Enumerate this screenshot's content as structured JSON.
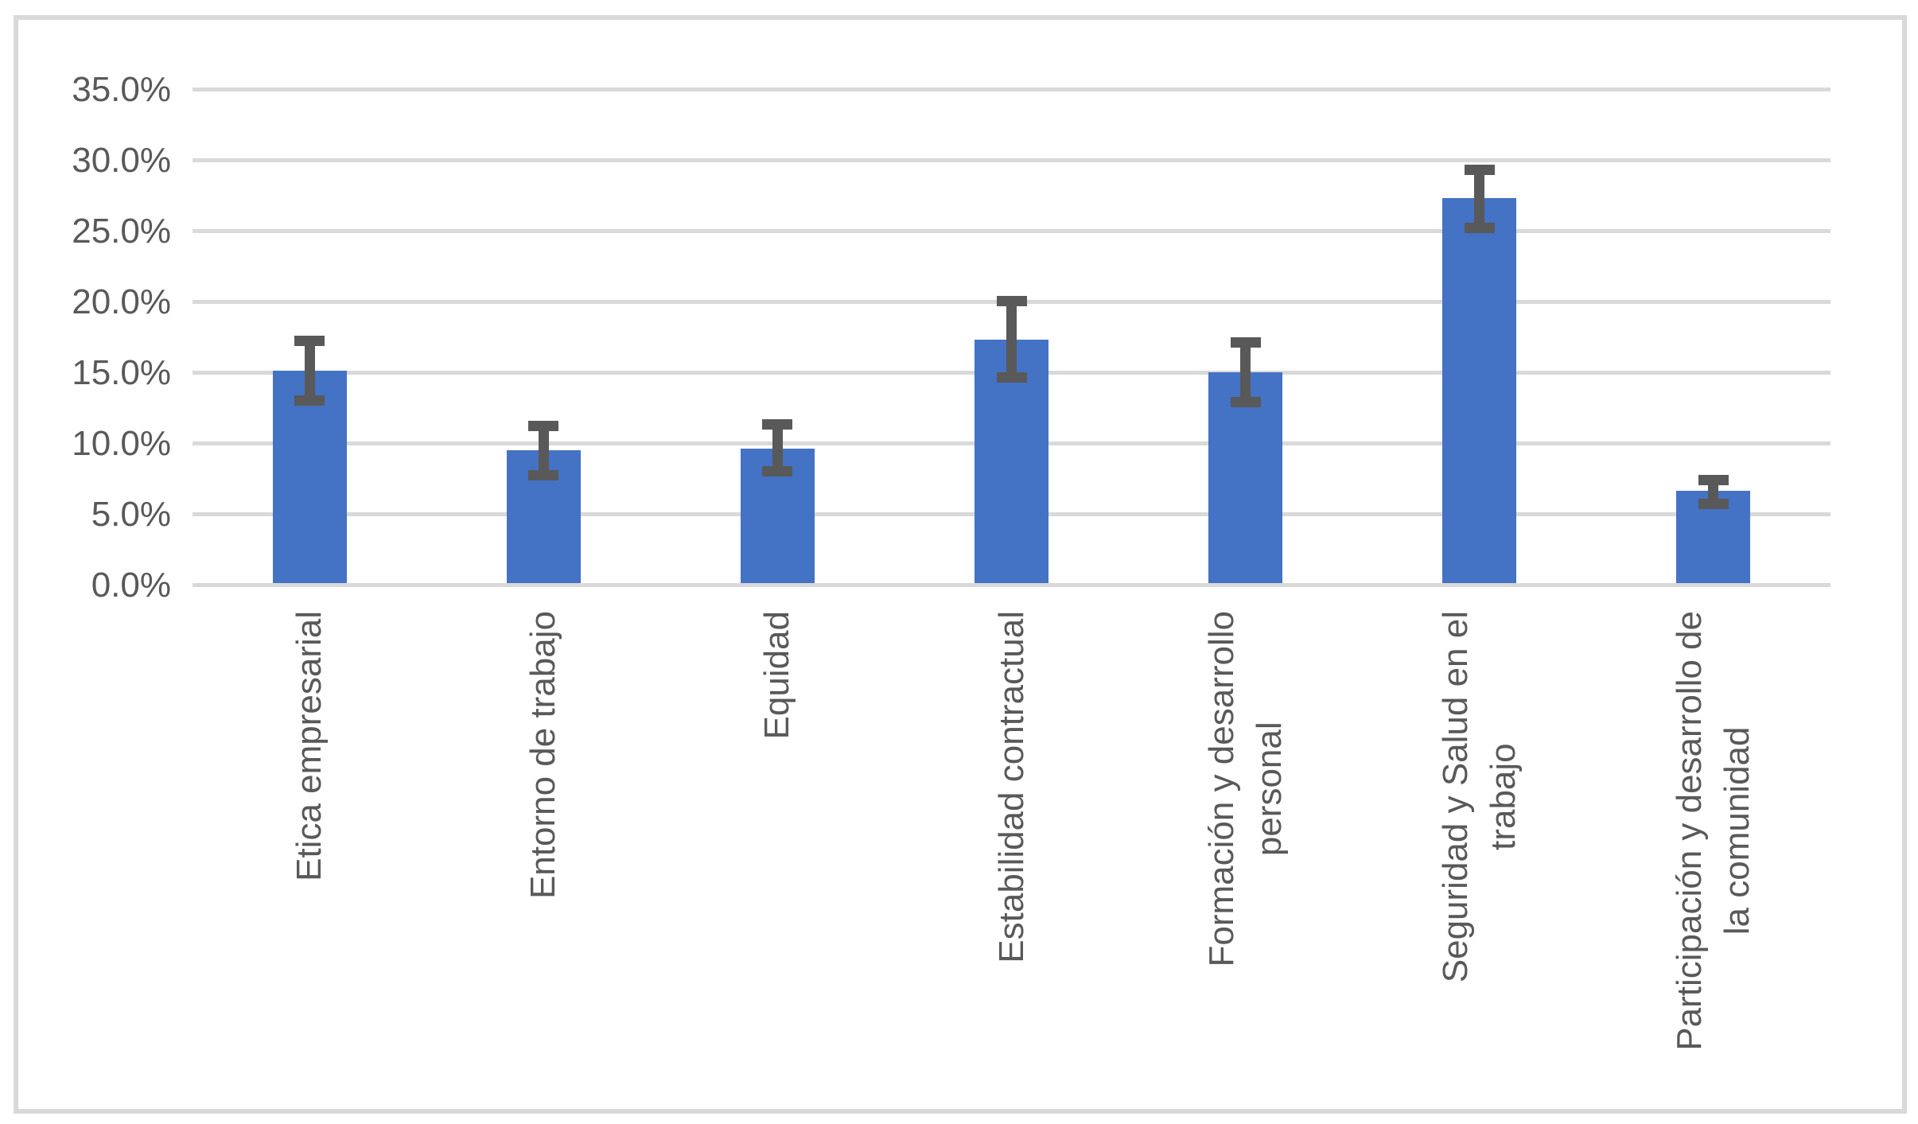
{
  "figure": {
    "background_color": "#ffffff",
    "border_color": "#d9d9d9"
  },
  "chart_data": {
    "type": "bar",
    "title": "",
    "xlabel": "",
    "ylabel": "",
    "grid": true,
    "legend": false,
    "ylim": [
      0,
      35
    ],
    "ytick_step": 5,
    "bar_color": "#4472c4",
    "errorbar_color": "#595959",
    "gridline_color": "#d9d9d9",
    "text_color": "#595959",
    "categories": [
      "Etica empresarial",
      "Entorno de trabajo",
      "Equidad",
      "Estabilidad contractual",
      "Formación y desarrollo\npersonal",
      "Seguridad y Salud en el\ntrabajo",
      "Participación y desarrollo de\nla comunidad"
    ],
    "series": [
      {
        "values": [
          15.0,
          9.4,
          9.5,
          17.2,
          14.9,
          27.2,
          6.5
        ],
        "error_high": [
          17.1,
          11.1,
          11.2,
          19.9,
          17.0,
          29.2,
          7.3
        ],
        "error_low": [
          12.9,
          7.6,
          7.9,
          14.5,
          12.8,
          25.1,
          5.6
        ]
      }
    ],
    "yticks": [
      {
        "value": 0,
        "label": "0.0%"
      },
      {
        "value": 5,
        "label": "5.0%"
      },
      {
        "value": 10,
        "label": "10.0%"
      },
      {
        "value": 15,
        "label": "15.0%"
      },
      {
        "value": 20,
        "label": "20.0%"
      },
      {
        "value": 25,
        "label": "25.0%"
      },
      {
        "value": 30,
        "label": "30.0%"
      },
      {
        "value": 35,
        "label": "35.0%"
      }
    ]
  }
}
